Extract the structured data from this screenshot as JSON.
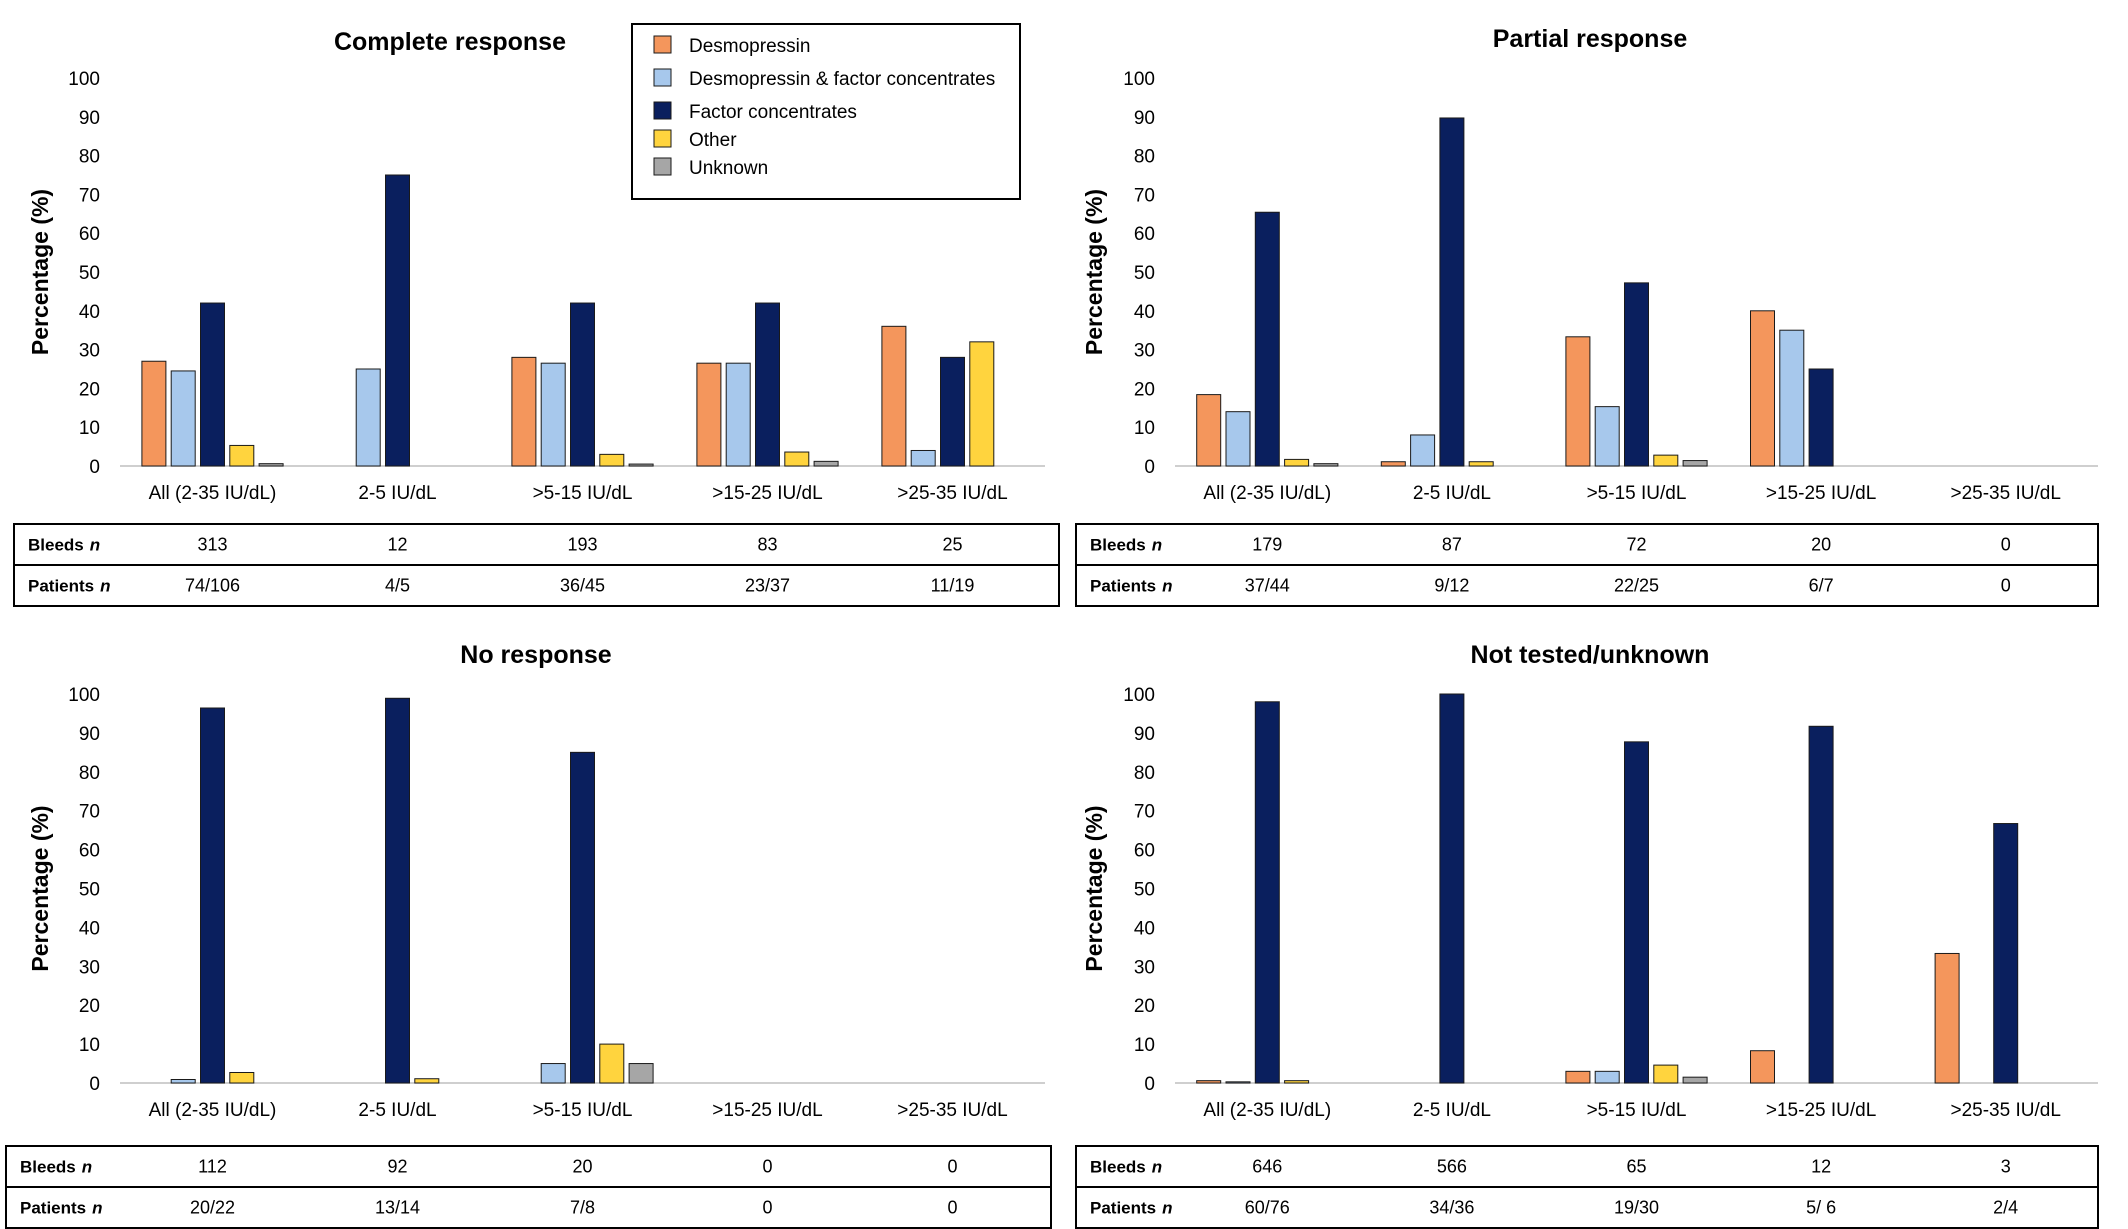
{
  "series": [
    {
      "name": "Desmopressin",
      "color": "#F4965C"
    },
    {
      "name": "Desmopressin & factor concentrates",
      "color": "#A7C8EC"
    },
    {
      "name": "Factor concentrates",
      "color": "#0A1F5E"
    },
    {
      "name": "Other",
      "color": "#FFD43E"
    },
    {
      "name": "Unknown",
      "color": "#A6A6A6"
    }
  ],
  "table_labels": {
    "bleeds": "Bleeds",
    "patients": "Patients",
    "n": "n"
  },
  "chart_data": [
    {
      "type": "bar",
      "title": "Complete response",
      "ylabel": "Percentage (%)",
      "ylim": [
        0,
        100
      ],
      "yticks": [
        0,
        10,
        20,
        30,
        40,
        50,
        60,
        70,
        80,
        90,
        100
      ],
      "categories": [
        "All (2-35 IU/dL)",
        "2-5 IU/dL",
        ">5-15 IU/dL",
        ">15-25 IU/dL",
        ">25-35 IU/dL"
      ],
      "series": [
        {
          "name": "Desmopressin",
          "values": [
            27,
            0,
            28,
            26.5,
            36
          ]
        },
        {
          "name": "Desmopressin & factor concentrates",
          "values": [
            24.5,
            25,
            26.5,
            26.5,
            4
          ]
        },
        {
          "name": "Factor concentrates",
          "values": [
            42,
            75,
            42,
            42,
            28
          ]
        },
        {
          "name": "Other",
          "values": [
            5.3,
            0,
            3,
            3.6,
            32
          ]
        },
        {
          "name": "Unknown",
          "values": [
            0.6,
            0,
            0.5,
            1.2,
            0
          ]
        }
      ],
      "legend": "top-right",
      "table": {
        "bleeds": [
          "313",
          "12",
          "193",
          "83",
          "25"
        ],
        "patients": [
          "74/106",
          "4/5",
          "36/45",
          "23/37",
          "11/19"
        ]
      }
    },
    {
      "type": "bar",
      "title": "Partial response",
      "ylabel": "Percentage (%)",
      "ylim": [
        0,
        100
      ],
      "yticks": [
        0,
        10,
        20,
        30,
        40,
        50,
        60,
        70,
        80,
        90,
        100
      ],
      "categories": [
        "All (2-35 IU/dL)",
        "2-5 IU/dL",
        ">5-15 IU/dL",
        ">15-25 IU/dL",
        ">25-35 IU/dL"
      ],
      "series": [
        {
          "name": "Desmopressin",
          "values": [
            18.4,
            1.1,
            33.3,
            40,
            0
          ]
        },
        {
          "name": "Desmopressin & factor concentrates",
          "values": [
            14,
            8,
            15.3,
            35,
            0
          ]
        },
        {
          "name": "Factor concentrates",
          "values": [
            65.4,
            89.7,
            47.2,
            25,
            0
          ]
        },
        {
          "name": "Other",
          "values": [
            1.7,
            1.1,
            2.8,
            0,
            0
          ]
        },
        {
          "name": "Unknown",
          "values": [
            0.6,
            0,
            1.4,
            0,
            0
          ]
        }
      ],
      "table": {
        "bleeds": [
          "179",
          "87",
          "72",
          "20",
          "0"
        ],
        "patients": [
          "37/44",
          "9/12",
          "22/25",
          "6/7",
          "0"
        ]
      }
    },
    {
      "type": "bar",
      "title": "No response",
      "ylabel": "Percentage (%)",
      "ylim": [
        0,
        100
      ],
      "yticks": [
        0,
        10,
        20,
        30,
        40,
        50,
        60,
        70,
        80,
        90,
        100
      ],
      "categories": [
        "All (2-35 IU/dL)",
        "2-5 IU/dL",
        ">5-15 IU/dL",
        ">15-25 IU/dL",
        ">25-35 IU/dL"
      ],
      "series": [
        {
          "name": "Desmopressin",
          "values": [
            0,
            0,
            0,
            0,
            0
          ]
        },
        {
          "name": "Desmopressin & factor concentrates",
          "values": [
            0.9,
            0,
            5,
            0,
            0
          ]
        },
        {
          "name": "Factor concentrates",
          "values": [
            96.4,
            98.9,
            85,
            0,
            0
          ]
        },
        {
          "name": "Other",
          "values": [
            2.7,
            1.1,
            10,
            0,
            0
          ]
        },
        {
          "name": "Unknown",
          "values": [
            0,
            0,
            5,
            0,
            0
          ]
        }
      ],
      "table": {
        "bleeds": [
          "112",
          "92",
          "20",
          "0",
          "0"
        ],
        "patients": [
          "20/22",
          "13/14",
          "7/8",
          "0",
          "0"
        ]
      }
    },
    {
      "type": "bar",
      "title": "Not tested/unknown",
      "ylabel": "Percentage (%)",
      "ylim": [
        0,
        100
      ],
      "yticks": [
        0,
        10,
        20,
        30,
        40,
        50,
        60,
        70,
        80,
        90,
        100
      ],
      "categories": [
        "All (2-35 IU/dL)",
        "2-5 IU/dL",
        ">5-15 IU/dL",
        ">15-25 IU/dL",
        ">25-35 IU/dL"
      ],
      "series": [
        {
          "name": "Desmopressin",
          "values": [
            0.6,
            0,
            3,
            8.3,
            33.3
          ]
        },
        {
          "name": "Desmopressin & factor concentrates",
          "values": [
            0.3,
            0,
            3,
            0,
            0
          ]
        },
        {
          "name": "Factor concentrates",
          "values": [
            98,
            100,
            87.7,
            91.7,
            66.7
          ]
        },
        {
          "name": "Other",
          "values": [
            0.6,
            0,
            4.6,
            0,
            0
          ]
        },
        {
          "name": "Unknown",
          "values": [
            0,
            0,
            1.5,
            0,
            0
          ]
        }
      ],
      "table": {
        "bleeds": [
          "646",
          "566",
          "65",
          "12",
          "3"
        ],
        "patients": [
          "60/76",
          "34/36",
          "19/30",
          "5/ 6",
          "2/4"
        ]
      }
    }
  ]
}
